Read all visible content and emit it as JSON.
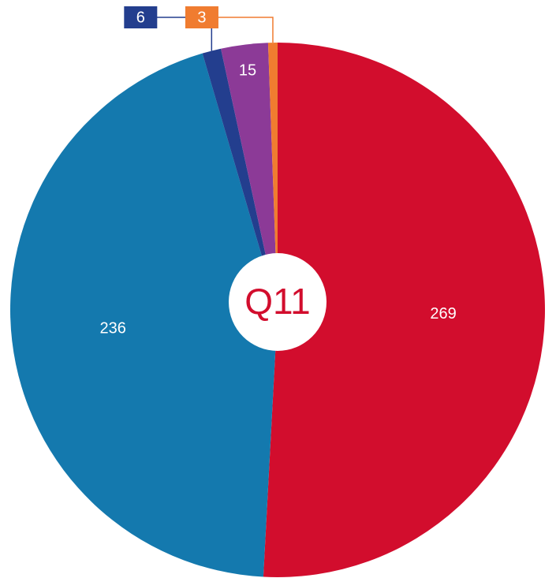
{
  "chart_data": {
    "type": "pie",
    "title": "Q11",
    "categories": [
      null,
      null,
      null,
      null,
      null
    ],
    "values": [
      269,
      236,
      6,
      15,
      3
    ],
    "colors": [
      "#d20d2d",
      "#1479ae",
      "#233e8e",
      "#8c3a97",
      "#f07c30"
    ],
    "title_color": "#d20d2d"
  }
}
